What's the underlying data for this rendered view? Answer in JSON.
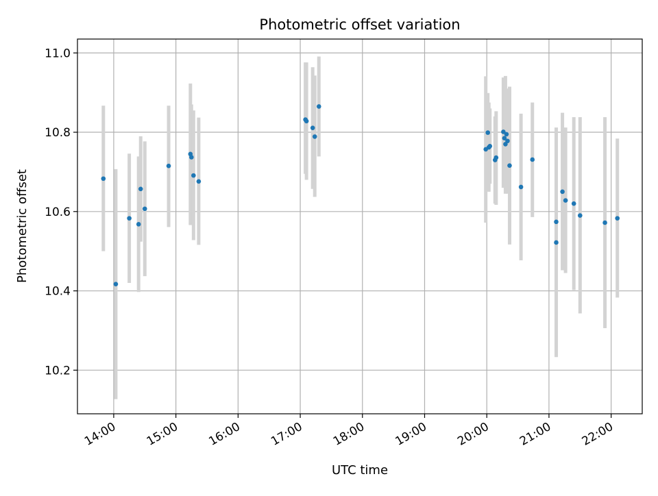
{
  "chart_data": {
    "type": "scatter",
    "title": "Photometric offset variation",
    "xlabel": "UTC time",
    "ylabel": "Photometric offset",
    "x_ticks": [
      "14:00",
      "15:00",
      "16:00",
      "17:00",
      "18:00",
      "19:00",
      "20:00",
      "21:00",
      "22:00"
    ],
    "y_ticks": [
      "10.2",
      "10.4",
      "10.6",
      "10.8",
      "11.0"
    ],
    "xlim": [
      "13:25",
      "22:30"
    ],
    "ylim": [
      10.09,
      11.035
    ],
    "grid": true,
    "colors": {
      "point": "#1f77b4",
      "errorbar": "#d3d3d3",
      "grid": "#b0b0b0"
    },
    "points": [
      {
        "x": "13:50",
        "y": 10.683,
        "ylo": 10.5,
        "yhi": 10.867
      },
      {
        "x": "14:02",
        "y": 10.417,
        "ylo": 10.127,
        "yhi": 10.707
      },
      {
        "x": "14:15",
        "y": 10.583,
        "ylo": 10.42,
        "yhi": 10.746
      },
      {
        "x": "14:24",
        "y": 10.568,
        "ylo": 10.397,
        "yhi": 10.739
      },
      {
        "x": "14:26",
        "y": 10.657,
        "ylo": 10.524,
        "yhi": 10.79
      },
      {
        "x": "14:30",
        "y": 10.607,
        "ylo": 10.437,
        "yhi": 10.777
      },
      {
        "x": "14:53",
        "y": 10.715,
        "ylo": 10.561,
        "yhi": 10.867
      },
      {
        "x": "15:14",
        "y": 10.745,
        "ylo": 10.566,
        "yhi": 10.923
      },
      {
        "x": "15:15",
        "y": 10.737,
        "ylo": 10.62,
        "yhi": 10.87
      },
      {
        "x": "15:17",
        "y": 10.691,
        "ylo": 10.528,
        "yhi": 10.855
      },
      {
        "x": "15:22",
        "y": 10.676,
        "ylo": 10.516,
        "yhi": 10.837
      },
      {
        "x": "17:05",
        "y": 10.832,
        "ylo": 10.695,
        "yhi": 10.976
      },
      {
        "x": "17:06",
        "y": 10.828,
        "ylo": 10.68,
        "yhi": 10.976
      },
      {
        "x": "17:12",
        "y": 10.811,
        "ylo": 10.657,
        "yhi": 10.964
      },
      {
        "x": "17:14",
        "y": 10.789,
        "ylo": 10.637,
        "yhi": 10.943
      },
      {
        "x": "17:18",
        "y": 10.865,
        "ylo": 10.739,
        "yhi": 10.991
      },
      {
        "x": "19:59",
        "y": 10.757,
        "ylo": 10.572,
        "yhi": 10.941
      },
      {
        "x": "20:01",
        "y": 10.799,
        "ylo": 10.7,
        "yhi": 10.899
      },
      {
        "x": "20:02",
        "y": 10.762,
        "ylo": 10.65,
        "yhi": 10.875
      },
      {
        "x": "20:03",
        "y": 10.765,
        "ylo": 10.67,
        "yhi": 10.86
      },
      {
        "x": "20:08",
        "y": 10.73,
        "ylo": 10.62,
        "yhi": 10.84
      },
      {
        "x": "20:09",
        "y": 10.736,
        "ylo": 10.617,
        "yhi": 10.853
      },
      {
        "x": "20:16",
        "y": 10.801,
        "ylo": 10.66,
        "yhi": 10.938
      },
      {
        "x": "20:17",
        "y": 10.785,
        "ylo": 10.665,
        "yhi": 10.92
      },
      {
        "x": "20:18",
        "y": 10.77,
        "ylo": 10.645,
        "yhi": 10.942
      },
      {
        "x": "20:19",
        "y": 10.795,
        "ylo": 10.66,
        "yhi": 10.91
      },
      {
        "x": "20:20",
        "y": 10.778,
        "ylo": 10.645,
        "yhi": 10.91
      },
      {
        "x": "20:22",
        "y": 10.716,
        "ylo": 10.517,
        "yhi": 10.915
      },
      {
        "x": "20:33",
        "y": 10.662,
        "ylo": 10.477,
        "yhi": 10.847
      },
      {
        "x": "20:44",
        "y": 10.731,
        "ylo": 10.586,
        "yhi": 10.875
      },
      {
        "x": "21:07",
        "y": 10.574,
        "ylo": 10.36,
        "yhi": 10.812
      },
      {
        "x": "21:07",
        "y": 10.522,
        "ylo": 10.233,
        "yhi": 10.811
      },
      {
        "x": "21:13",
        "y": 10.65,
        "ylo": 10.452,
        "yhi": 10.849
      },
      {
        "x": "21:16",
        "y": 10.628,
        "ylo": 10.445,
        "yhi": 10.812
      },
      {
        "x": "21:24",
        "y": 10.62,
        "ylo": 10.402,
        "yhi": 10.838
      },
      {
        "x": "21:30",
        "y": 10.59,
        "ylo": 10.343,
        "yhi": 10.838
      },
      {
        "x": "21:54",
        "y": 10.572,
        "ylo": 10.306,
        "yhi": 10.838
      },
      {
        "x": "22:06",
        "y": 10.583,
        "ylo": 10.383,
        "yhi": 10.784
      }
    ]
  }
}
